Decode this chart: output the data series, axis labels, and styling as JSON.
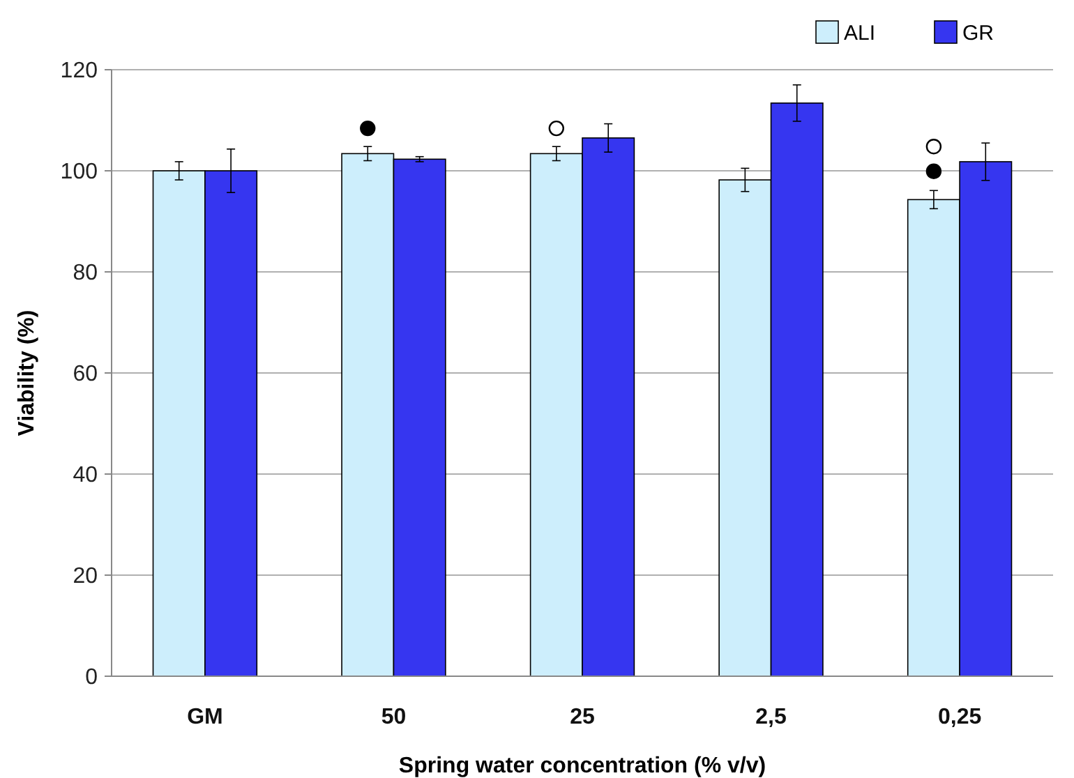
{
  "chart_data": {
    "type": "bar",
    "xlabel": "Spring water concentration (% v/v)",
    "ylabel": "Viability (%)",
    "categories": [
      "GM",
      "50",
      "25",
      "2,5",
      "0,25"
    ],
    "series": [
      {
        "name": "ALI",
        "color": "#cdeefc",
        "values": [
          100,
          103.4,
          103.4,
          98.2,
          94.3
        ],
        "errors": [
          1.8,
          1.4,
          1.4,
          2.3,
          1.8
        ]
      },
      {
        "name": "GR",
        "color": "#3636f0",
        "values": [
          100,
          102.3,
          106.5,
          113.4,
          101.8
        ],
        "errors": [
          4.3,
          0.5,
          2.8,
          3.6,
          3.7
        ]
      },
      {
        "type": "scatter",
        "color": "#000000",
        "marker": "circle",
        "x": [
          "50",
          "0,25"
        ],
        "values": [
          108.4,
          99.9
        ]
      },
      {
        "type": "scatter",
        "color": "#ffffff",
        "marker": "circle",
        "x": [
          "25",
          "0,25"
        ],
        "values": [
          108.4,
          104.8
        ]
      }
    ],
    "ylim": [
      0,
      120
    ],
    "yticks": [
      0,
      20,
      40,
      60,
      80,
      100,
      120
    ],
    "grid": "y",
    "legend": "top right"
  }
}
